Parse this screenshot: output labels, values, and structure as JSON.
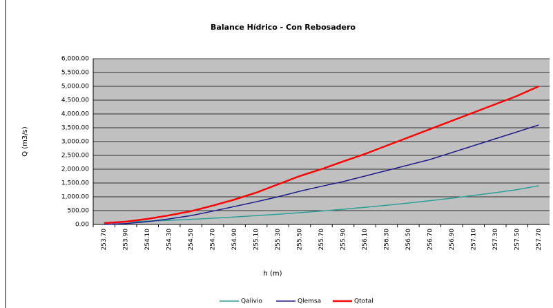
{
  "chart_data": {
    "type": "line",
    "title": "Balance Hídrico - Con Rebosadero",
    "x_label": "h (m)",
    "y_label": "Q (m3/s)",
    "categories": [
      "253.70",
      "253.90",
      "254.10",
      "254.30",
      "254.50",
      "254.70",
      "254.90",
      "255.10",
      "255.30",
      "255.50",
      "255.70",
      "255.90",
      "256.10",
      "256.30",
      "256.50",
      "256.70",
      "256.90",
      "257.10",
      "257.30",
      "257.50",
      "257.70"
    ],
    "series": [
      {
        "name": "Qalivio",
        "color": "#2e9e96",
        "values": [
          50,
          90,
          120,
          150,
          185,
          225,
          270,
          320,
          370,
          425,
          485,
          550,
          620,
          695,
          775,
          860,
          950,
          1050,
          1150,
          1260,
          1400
        ]
      },
      {
        "name": "Qlemsa",
        "color": "#1c1c8a",
        "values": [
          0,
          30,
          100,
          200,
          320,
          480,
          650,
          820,
          1000,
          1200,
          1380,
          1550,
          1750,
          1950,
          2150,
          2350,
          2600,
          2850,
          3100,
          3350,
          3600
        ]
      },
      {
        "name": "Qtotal",
        "color": "#ff0000",
        "values": [
          50,
          100,
          200,
          330,
          480,
          680,
          900,
          1150,
          1450,
          1750,
          2000,
          2280,
          2550,
          2850,
          3150,
          3450,
          3750,
          4050,
          4350,
          4650,
          5000
        ]
      }
    ],
    "ylim": [
      0,
      6000
    ],
    "yticks": [
      {
        "value": 0,
        "label": "0.00"
      },
      {
        "value": 500,
        "label": "500.00"
      },
      {
        "value": 1000,
        "label": "1,000.00"
      },
      {
        "value": 1500,
        "label": "1,500.00"
      },
      {
        "value": 2000,
        "label": "2,000.00"
      },
      {
        "value": 2500,
        "label": "2,500.00"
      },
      {
        "value": 3000,
        "label": "3,000.00"
      },
      {
        "value": 3500,
        "label": "3,500.00"
      },
      {
        "value": 4000,
        "label": "4,000.00"
      },
      {
        "value": 4500,
        "label": "4,500.00"
      },
      {
        "value": 5000,
        "label": "5,000.00"
      },
      {
        "value": 5500,
        "label": "5,500.00"
      },
      {
        "value": 6000,
        "label": "6,000.00"
      }
    ],
    "grid": true,
    "legend": "bottom"
  }
}
